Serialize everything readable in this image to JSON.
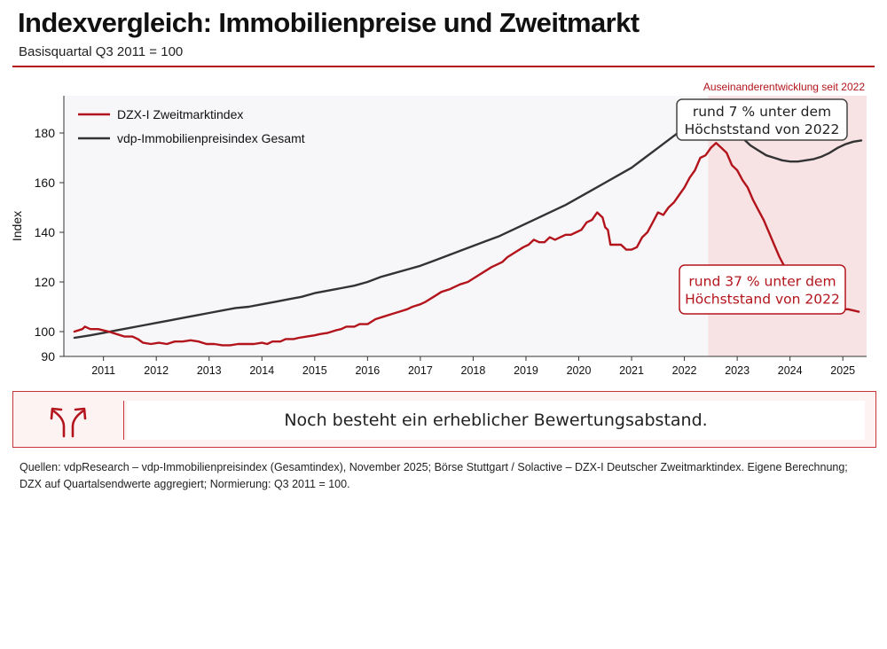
{
  "header": {
    "title": "Indexvergleich: Immobilienpreise und Zweitmarkt",
    "subtitle": "Basisquartal Q3 2011 = 100"
  },
  "chart_data": {
    "type": "line",
    "ylabel": "Index",
    "ylim": [
      90,
      195
    ],
    "yticks": [
      90,
      100,
      120,
      140,
      160,
      180
    ],
    "xlim": [
      2010.75,
      2025.95
    ],
    "xticks": [
      "2011",
      "2012",
      "2013",
      "2014",
      "2015",
      "2016",
      "2017",
      "2018",
      "2019",
      "2020",
      "2021",
      "2022",
      "2023",
      "2024",
      "2025"
    ],
    "grid": false,
    "legend_position": "top-left",
    "highlight": {
      "label": "Auseinanderentwicklung seit 2022",
      "from": 2022.95,
      "to": 2025.95,
      "color": "#f7e3e4"
    },
    "series": [
      {
        "name": "DZX-I Zweitmarktindex",
        "color": "#b3141c",
        "points": [
          [
            2010.95,
            100
          ],
          [
            2011.1,
            101
          ],
          [
            2011.15,
            102
          ],
          [
            2011.25,
            101
          ],
          [
            2011.4,
            101
          ],
          [
            2011.6,
            100
          ],
          [
            2011.75,
            99
          ],
          [
            2011.9,
            98
          ],
          [
            2012.05,
            98
          ],
          [
            2012.15,
            97
          ],
          [
            2012.25,
            95.5
          ],
          [
            2012.4,
            95
          ],
          [
            2012.55,
            95.5
          ],
          [
            2012.7,
            95
          ],
          [
            2012.85,
            96
          ],
          [
            2013.0,
            96
          ],
          [
            2013.15,
            96.5
          ],
          [
            2013.3,
            96
          ],
          [
            2013.45,
            95
          ],
          [
            2013.6,
            95
          ],
          [
            2013.75,
            94.5
          ],
          [
            2013.9,
            94.5
          ],
          [
            2014.05,
            95
          ],
          [
            2014.2,
            95
          ],
          [
            2014.35,
            95
          ],
          [
            2014.5,
            95.5
          ],
          [
            2014.6,
            95
          ],
          [
            2014.7,
            96
          ],
          [
            2014.85,
            96
          ],
          [
            2014.95,
            97
          ],
          [
            2015.1,
            97
          ],
          [
            2015.2,
            97.5
          ],
          [
            2015.35,
            98
          ],
          [
            2015.5,
            98.5
          ],
          [
            2015.6,
            99
          ],
          [
            2015.75,
            99.5
          ],
          [
            2015.9,
            100.5
          ],
          [
            2016.0,
            101
          ],
          [
            2016.1,
            102
          ],
          [
            2016.25,
            102
          ],
          [
            2016.35,
            103
          ],
          [
            2016.5,
            103
          ],
          [
            2016.65,
            105
          ],
          [
            2016.8,
            106
          ],
          [
            2016.95,
            107
          ],
          [
            2017.1,
            108
          ],
          [
            2017.25,
            109
          ],
          [
            2017.35,
            110
          ],
          [
            2017.5,
            111
          ],
          [
            2017.6,
            112
          ],
          [
            2017.75,
            114
          ],
          [
            2017.9,
            116
          ],
          [
            2018.05,
            117
          ],
          [
            2018.15,
            118
          ],
          [
            2018.25,
            119
          ],
          [
            2018.4,
            120
          ],
          [
            2018.55,
            122
          ],
          [
            2018.7,
            124
          ],
          [
            2018.85,
            126
          ],
          [
            2018.95,
            127
          ],
          [
            2019.05,
            128
          ],
          [
            2019.15,
            130
          ],
          [
            2019.3,
            132
          ],
          [
            2019.45,
            134
          ],
          [
            2019.55,
            135
          ],
          [
            2019.65,
            137
          ],
          [
            2019.75,
            136
          ],
          [
            2019.85,
            136
          ],
          [
            2019.95,
            138
          ],
          [
            2020.05,
            137
          ],
          [
            2020.15,
            138
          ],
          [
            2020.25,
            139
          ],
          [
            2020.35,
            139
          ],
          [
            2020.45,
            140
          ],
          [
            2020.55,
            141
          ],
          [
            2020.65,
            144
          ],
          [
            2020.75,
            145
          ],
          [
            2020.85,
            148
          ],
          [
            2020.95,
            146
          ],
          [
            2021.0,
            142
          ],
          [
            2021.05,
            141
          ],
          [
            2021.1,
            135
          ],
          [
            2021.2,
            135
          ],
          [
            2021.3,
            135
          ],
          [
            2021.4,
            133
          ],
          [
            2021.5,
            133
          ],
          [
            2021.6,
            134
          ],
          [
            2021.7,
            138
          ],
          [
            2021.8,
            140
          ],
          [
            2021.9,
            144
          ],
          [
            2022.0,
            148
          ],
          [
            2022.1,
            147
          ],
          [
            2022.2,
            150
          ],
          [
            2022.3,
            152
          ],
          [
            2022.4,
            155
          ],
          [
            2022.5,
            158
          ],
          [
            2022.6,
            162
          ],
          [
            2022.7,
            165
          ],
          [
            2022.8,
            170
          ],
          [
            2022.9,
            171
          ],
          [
            2023.0,
            174
          ],
          [
            2023.1,
            176
          ],
          [
            2023.2,
            174
          ],
          [
            2023.3,
            172
          ],
          [
            2023.4,
            167
          ],
          [
            2023.5,
            165
          ],
          [
            2023.6,
            161
          ],
          [
            2023.7,
            158
          ],
          [
            2023.8,
            153
          ],
          [
            2023.9,
            149
          ],
          [
            2024.0,
            145
          ],
          [
            2024.1,
            140
          ],
          [
            2024.2,
            135
          ],
          [
            2024.3,
            130
          ],
          [
            2024.4,
            126
          ],
          [
            2024.55,
            121
          ],
          [
            2024.7,
            118
          ],
          [
            2024.85,
            115
          ],
          [
            2025.0,
            112
          ],
          [
            2025.2,
            110
          ],
          [
            2025.4,
            109
          ],
          [
            2025.6,
            109
          ],
          [
            2025.8,
            108
          ]
        ]
      },
      {
        "name": "vdp-Immobilienpreisindex Gesamt",
        "color": "#333333",
        "points": [
          [
            2010.95,
            97.5
          ],
          [
            2011.25,
            98.5
          ],
          [
            2011.5,
            99.5
          ],
          [
            2011.75,
            100.5
          ],
          [
            2012.0,
            101.5
          ],
          [
            2012.25,
            102.5
          ],
          [
            2012.5,
            103.5
          ],
          [
            2012.75,
            104.5
          ],
          [
            2013.0,
            105.5
          ],
          [
            2013.25,
            106.5
          ],
          [
            2013.5,
            107.5
          ],
          [
            2013.75,
            108.5
          ],
          [
            2014.0,
            109.5
          ],
          [
            2014.25,
            110
          ],
          [
            2014.5,
            111
          ],
          [
            2014.75,
            112
          ],
          [
            2015.0,
            113
          ],
          [
            2015.25,
            114
          ],
          [
            2015.5,
            115.5
          ],
          [
            2015.75,
            116.5
          ],
          [
            2016.0,
            117.5
          ],
          [
            2016.25,
            118.5
          ],
          [
            2016.5,
            120
          ],
          [
            2016.75,
            122
          ],
          [
            2017.0,
            123.5
          ],
          [
            2017.25,
            125
          ],
          [
            2017.5,
            126.5
          ],
          [
            2017.75,
            128.5
          ],
          [
            2018.0,
            130.5
          ],
          [
            2018.25,
            132.5
          ],
          [
            2018.5,
            134.5
          ],
          [
            2018.75,
            136.5
          ],
          [
            2019.0,
            138.5
          ],
          [
            2019.25,
            141
          ],
          [
            2019.5,
            143.5
          ],
          [
            2019.75,
            146
          ],
          [
            2020.0,
            148.5
          ],
          [
            2020.25,
            151
          ],
          [
            2020.5,
            154
          ],
          [
            2020.75,
            157
          ],
          [
            2021.0,
            160
          ],
          [
            2021.25,
            163
          ],
          [
            2021.5,
            166
          ],
          [
            2021.75,
            170
          ],
          [
            2022.0,
            174
          ],
          [
            2022.25,
            178
          ],
          [
            2022.5,
            182
          ],
          [
            2022.75,
            186.5
          ],
          [
            2022.9,
            188.5
          ],
          [
            2023.0,
            189.5
          ],
          [
            2023.15,
            189
          ],
          [
            2023.3,
            186
          ],
          [
            2023.45,
            182
          ],
          [
            2023.6,
            178
          ],
          [
            2023.75,
            175
          ],
          [
            2023.9,
            173
          ],
          [
            2024.05,
            171
          ],
          [
            2024.2,
            170
          ],
          [
            2024.35,
            169
          ],
          [
            2024.5,
            168.5
          ],
          [
            2024.65,
            168.5
          ],
          [
            2024.8,
            169
          ],
          [
            2024.95,
            169.5
          ],
          [
            2025.1,
            170.5
          ],
          [
            2025.25,
            172
          ],
          [
            2025.4,
            174
          ],
          [
            2025.55,
            175.5
          ],
          [
            2025.7,
            176.5
          ],
          [
            2025.85,
            177
          ]
        ]
      }
    ],
    "annotations": [
      {
        "text_line1": "rund 7 % unter dem",
        "text_line2": "Höchststand von 2022",
        "style": "dark"
      },
      {
        "text_line1": "rund 37 % unter dem",
        "text_line2": "Höchststand von 2022",
        "style": "red"
      }
    ]
  },
  "callout": {
    "icon": "diverging-arrows-icon",
    "text": "Noch besteht ein erheblicher Bewertungsabstand."
  },
  "sources": {
    "line1": "Quellen: vdpResearch – vdp-Immobilienpreisindex (Gesamtindex), November 2025; Börse Stuttgart / Solactive – DZX-I Deutscher Zweitmarktindex. Eigene Berechnung;",
    "line2": "DZX auf Quartalsendwerte aggregiert; Normierung: Q3 2011 = 100."
  }
}
